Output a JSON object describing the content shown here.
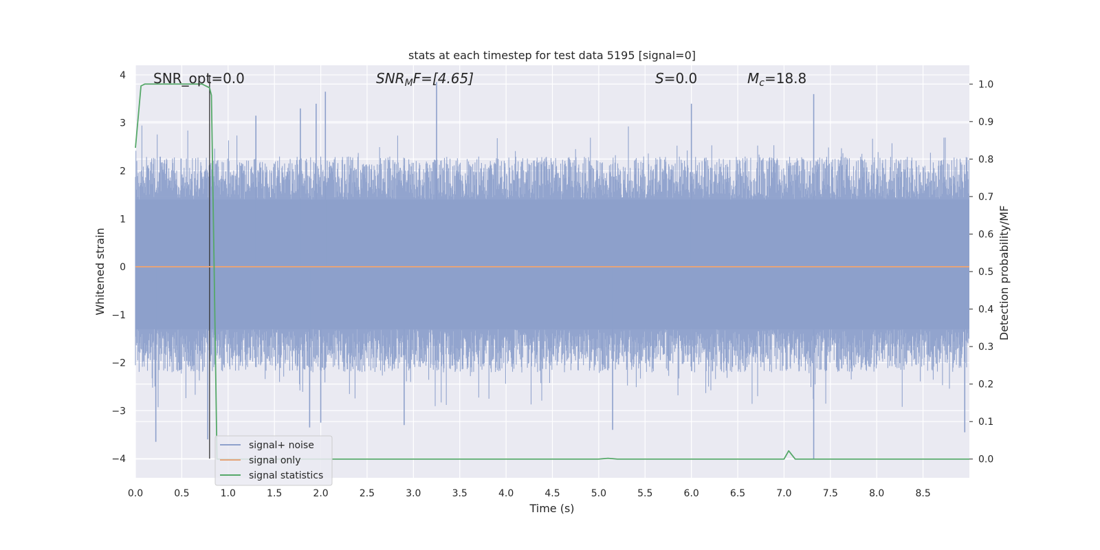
{
  "chart_data": {
    "type": "line",
    "title": "stats at each timestep for test data 5195 [signal=0]",
    "xlabel": "Time (s)",
    "ylabel": "Whitened strain",
    "y2label": "Detection probability/MF",
    "xlim": [
      0,
      9.0
    ],
    "ylim": [
      -4.4,
      4.2
    ],
    "y2lim": [
      -0.05,
      1.05
    ],
    "grid": true,
    "legend_position": "lower-left",
    "x_ticks": [
      "0.0",
      "0.5",
      "1.0",
      "1.5",
      "2.0",
      "2.5",
      "3.0",
      "3.5",
      "4.0",
      "4.5",
      "5.0",
      "5.5",
      "6.0",
      "6.5",
      "7.0",
      "7.5",
      "8.0",
      "8.5"
    ],
    "y_ticks": [
      "4",
      "3",
      "2",
      "1",
      "0",
      "−1",
      "−2",
      "−3",
      "−4"
    ],
    "y2_ticks": [
      "1.0",
      "0.9",
      "0.8",
      "0.7",
      "0.6",
      "0.5",
      "0.4",
      "0.3",
      "0.2",
      "0.1",
      "0.0"
    ],
    "annotations": {
      "snr_opt": "SNR_opt=0.0",
      "snr_mf_base": "SNR",
      "snr_mf_sub": "M",
      "snr_mf_rest": "F=[4.65]",
      "s_italic": "S",
      "s_rest": "=0.0",
      "mc_base": "M",
      "mc_sub": "c",
      "mc_rest": "=18.8"
    },
    "series": [
      {
        "name": "signal+ noise",
        "color": "#8da0cb",
        "style": "noise-band",
        "typical_envelope": [
          -1.6,
          1.8
        ],
        "notable_peaks": [
          [
            0.22,
            -3.65
          ],
          [
            0.78,
            -3.6
          ],
          [
            1.3,
            3.15
          ],
          [
            1.78,
            3.3
          ],
          [
            1.88,
            -3.35
          ],
          [
            1.95,
            3.4
          ],
          [
            2.0,
            -3.25
          ],
          [
            2.05,
            3.65
          ],
          [
            2.9,
            -3.3
          ],
          [
            3.25,
            3.85
          ],
          [
            5.15,
            -3.4
          ],
          [
            6.0,
            3.4
          ],
          [
            7.32,
            3.6
          ],
          [
            7.32,
            -4.0
          ],
          [
            8.95,
            -3.45
          ]
        ]
      },
      {
        "name": "signal only",
        "color": "#e5a47a",
        "x": [
          0.0,
          9.0
        ],
        "y": [
          0.0,
          0.0
        ]
      },
      {
        "name": "signal statistics",
        "color": "#55a868",
        "axis": "right",
        "x": [
          0.0,
          0.06,
          0.1,
          0.2,
          0.4,
          0.6,
          0.72,
          0.8,
          0.82,
          0.85,
          0.88,
          0.95,
          1.5,
          2.5,
          3.5,
          4.5,
          5.0,
          5.1,
          5.2,
          6.0,
          6.5,
          7.0,
          7.05,
          7.12,
          7.5,
          8.0,
          8.5,
          9.0
        ],
        "y": [
          0.83,
          0.995,
          1.0,
          1.0,
          1.0,
          1.0,
          1.0,
          0.99,
          0.97,
          0.5,
          0.0,
          0.0,
          0.0,
          0.0,
          0.0,
          0.0,
          0.0,
          0.002,
          0.0,
          0.0,
          0.0,
          0.0,
          0.022,
          0.0,
          0.0,
          0.0,
          0.0,
          0.0
        ]
      }
    ],
    "marker_line": {
      "x": 0.8,
      "y_range": [
        -4.0,
        4.0
      ],
      "color": "#333333"
    }
  }
}
